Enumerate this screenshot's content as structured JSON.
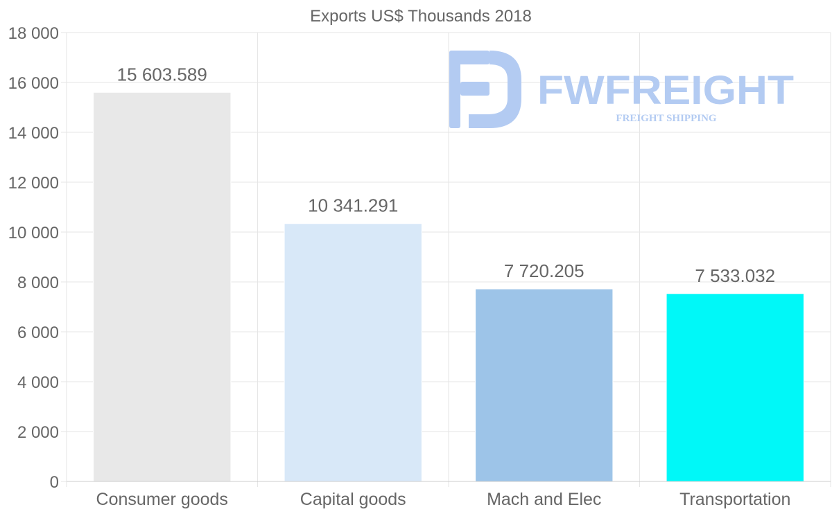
{
  "chart_data": {
    "type": "bar",
    "title": "Exports US$ Thousands 2018",
    "xlabel": "",
    "ylabel": "",
    "ylim": [
      0,
      18000
    ],
    "y_tick_step": 2000,
    "y_tick_labels": [
      "0",
      "2 000",
      "4 000",
      "6 000",
      "8 000",
      "10 000",
      "12 000",
      "14 000",
      "16 000",
      "18 000"
    ],
    "grid": true,
    "categories": [
      "Consumer goods",
      "Capital goods",
      "Mach and Elec",
      "Transportation"
    ],
    "values": [
      15603.589,
      10341.291,
      7720.205,
      7533.032
    ],
    "data_labels": [
      "15 603.589",
      "10 341.291",
      "7 720.205",
      "7 533.032"
    ],
    "bar_colors": [
      "#e8e8e8",
      "#d8e8f8",
      "#9dc4e8",
      "#00f8f8"
    ]
  },
  "watermark": {
    "brand": "FWFREIGHT",
    "tagline": "FREIGHT SHIPPING",
    "color": "#b3cbf2"
  },
  "colors": {
    "text": "#666666",
    "grid": "#e6e6e6",
    "axis": "#cccccc"
  }
}
